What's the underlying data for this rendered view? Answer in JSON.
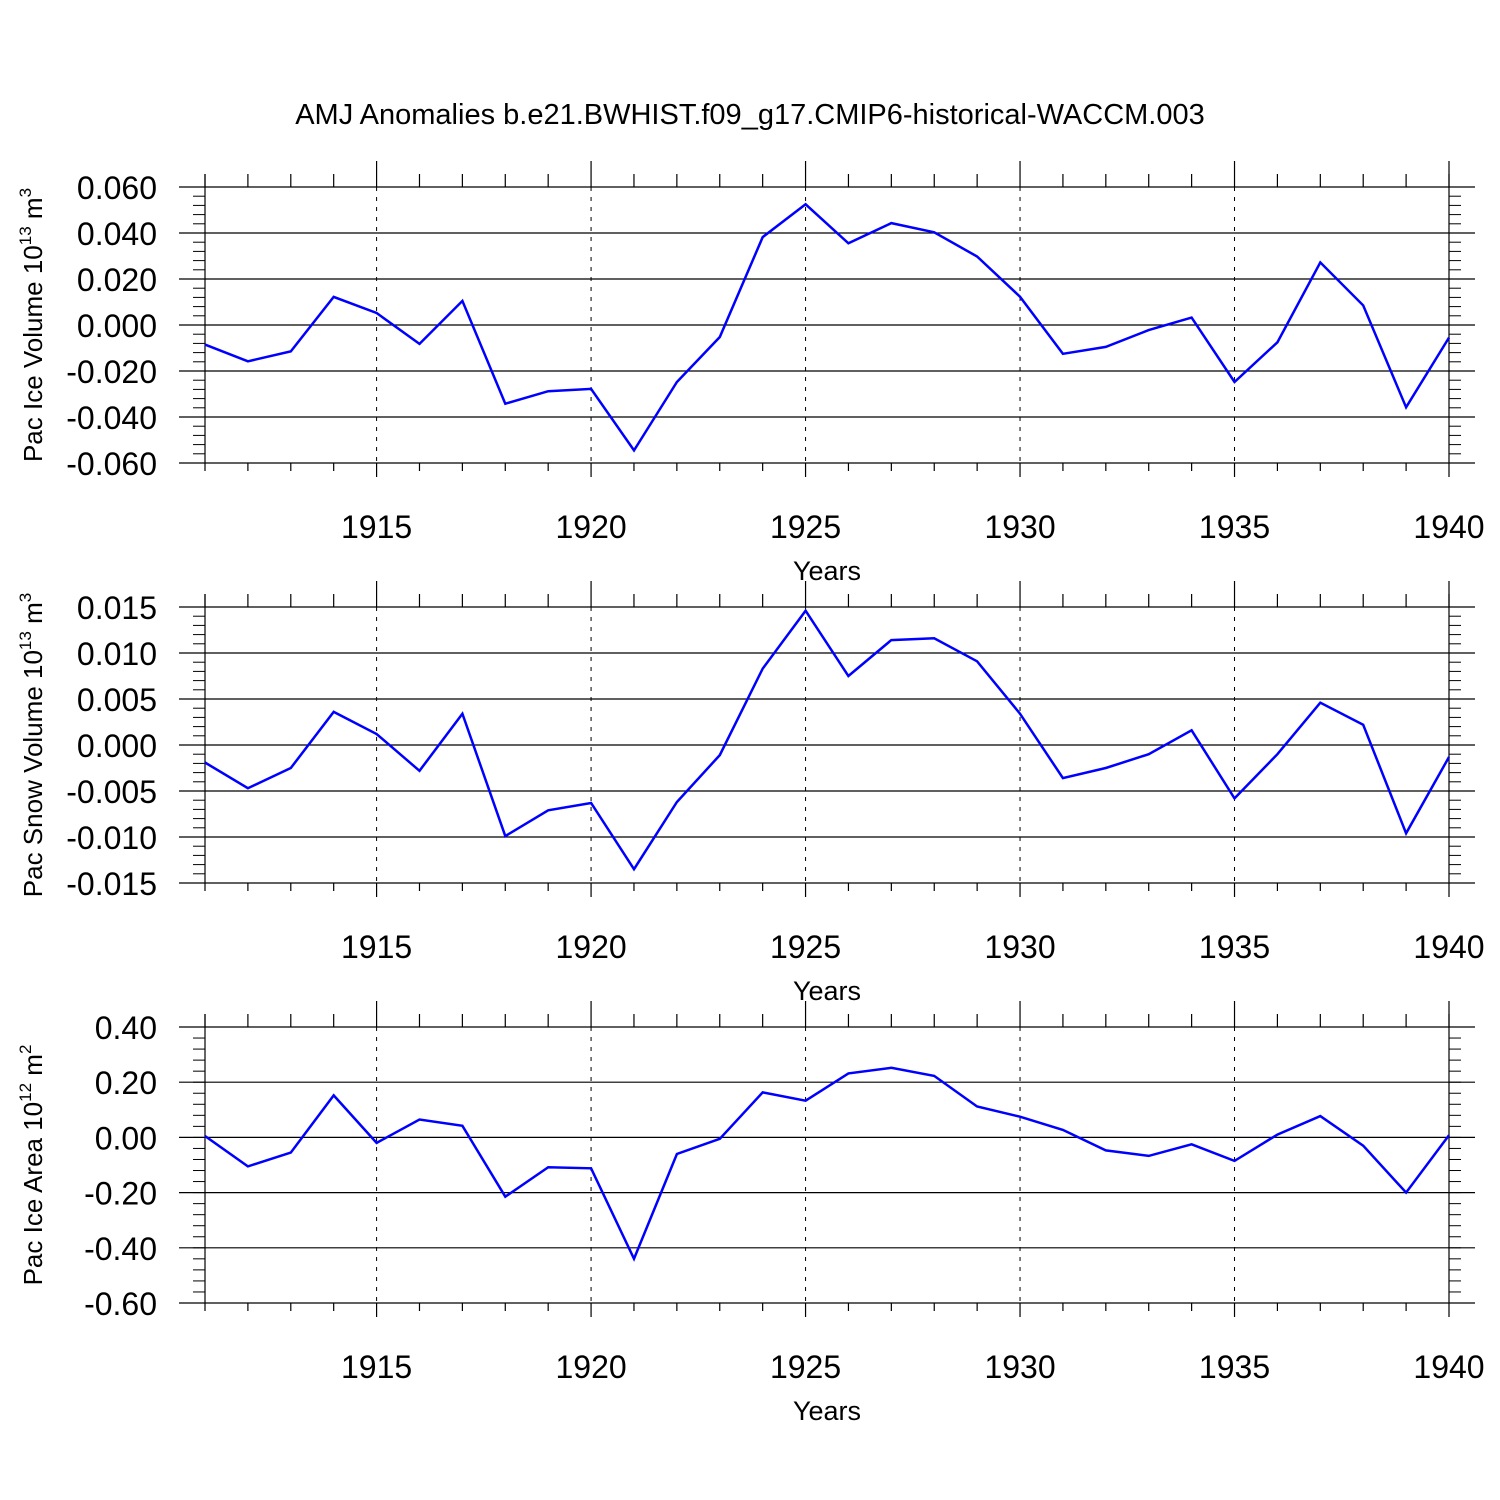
{
  "figure": {
    "title": "AMJ Anomalies b.e21.BWHIST.f09_g17.CMIP6-historical-WACCM.003",
    "line_color": "#0000ff"
  },
  "chart_data": [
    {
      "type": "line",
      "ylabel_prefix": "Pac Ice Volume 10",
      "ylabel_exp": "13",
      "ylabel_unit": " m",
      "ylabel_unit_exp": "3",
      "xlabel": "Years",
      "xlim": [
        1911,
        1940
      ],
      "ylim": [
        -0.06,
        0.06
      ],
      "yticks": [
        -0.06,
        -0.04,
        -0.02,
        0.0,
        0.02,
        0.04,
        0.06
      ],
      "ytick_labels": [
        "-0.060",
        "-0.040",
        "-0.020",
        "0.000",
        "0.020",
        "0.040",
        "0.060"
      ],
      "xticks": [
        1915,
        1920,
        1925,
        1930,
        1935,
        1940
      ],
      "xtick_labels": [
        "1915",
        "1920",
        "1925",
        "1930",
        "1935",
        "1940"
      ],
      "x": [
        1911,
        1912,
        1913,
        1914,
        1915,
        1916,
        1917,
        1918,
        1919,
        1920,
        1921,
        1922,
        1923,
        1924,
        1925,
        1926,
        1927,
        1928,
        1929,
        1930,
        1931,
        1932,
        1933,
        1934,
        1935,
        1936,
        1937,
        1938,
        1939,
        1940
      ],
      "values": [
        -0.0085,
        -0.0158,
        -0.0115,
        0.0122,
        0.0052,
        -0.0082,
        0.0105,
        -0.0342,
        -0.0288,
        -0.0278,
        -0.0545,
        -0.0248,
        -0.0052,
        0.0382,
        0.0525,
        0.0355,
        0.0443,
        0.0403,
        0.0298,
        0.0123,
        -0.0125,
        -0.0095,
        -0.0022,
        0.0032,
        -0.0248,
        -0.0075,
        0.0272,
        0.0085,
        -0.0358,
        -0.0055
      ]
    },
    {
      "type": "line",
      "ylabel_prefix": "Pac Snow Volume 10",
      "ylabel_exp": "13",
      "ylabel_unit": " m",
      "ylabel_unit_exp": "3",
      "xlabel": "Years",
      "xlim": [
        1911,
        1940
      ],
      "ylim": [
        -0.015,
        0.015
      ],
      "yticks": [
        -0.015,
        -0.01,
        -0.005,
        0.0,
        0.005,
        0.01,
        0.015
      ],
      "ytick_labels": [
        "-0.015",
        "-0.010",
        "-0.005",
        "0.000",
        "0.005",
        "0.010",
        "0.015"
      ],
      "xticks": [
        1915,
        1920,
        1925,
        1930,
        1935,
        1940
      ],
      "xtick_labels": [
        "1915",
        "1920",
        "1925",
        "1930",
        "1935",
        "1940"
      ],
      "x": [
        1911,
        1912,
        1913,
        1914,
        1915,
        1916,
        1917,
        1918,
        1919,
        1920,
        1921,
        1922,
        1923,
        1924,
        1925,
        1926,
        1927,
        1928,
        1929,
        1930,
        1931,
        1932,
        1933,
        1934,
        1935,
        1936,
        1937,
        1938,
        1939,
        1940
      ],
      "values": [
        -0.0019,
        -0.0047,
        -0.0025,
        0.0036,
        0.0012,
        -0.0028,
        0.0034,
        -0.0099,
        -0.0071,
        -0.0063,
        -0.0135,
        -0.0062,
        -0.0011,
        0.0083,
        0.0146,
        0.0075,
        0.0114,
        0.0116,
        0.0091,
        0.0034,
        -0.0036,
        -0.0025,
        -0.001,
        0.0016,
        -0.0058,
        -0.001,
        0.0046,
        0.0022,
        -0.0096,
        -0.0013
      ]
    },
    {
      "type": "line",
      "ylabel_prefix": "Pac Ice Area 10",
      "ylabel_exp": "12",
      "ylabel_unit": " m",
      "ylabel_unit_exp": "2",
      "xlabel": "Years",
      "xlim": [
        1911,
        1940
      ],
      "ylim": [
        -0.6,
        0.4
      ],
      "yticks": [
        -0.6,
        -0.4,
        -0.2,
        0.0,
        0.2,
        0.4
      ],
      "ytick_labels": [
        "-0.60",
        "-0.40",
        "-0.20",
        "0.00",
        "0.20",
        "0.40"
      ],
      "xticks": [
        1915,
        1920,
        1925,
        1930,
        1935,
        1940
      ],
      "xtick_labels": [
        "1915",
        "1920",
        "1925",
        "1930",
        "1935",
        "1940"
      ],
      "x": [
        1911,
        1912,
        1913,
        1914,
        1915,
        1916,
        1917,
        1918,
        1919,
        1920,
        1921,
        1922,
        1923,
        1924,
        1925,
        1926,
        1927,
        1928,
        1929,
        1930,
        1931,
        1932,
        1933,
        1934,
        1935,
        1936,
        1937,
        1938,
        1939,
        1940
      ],
      "values": [
        0.005,
        -0.105,
        -0.055,
        0.152,
        -0.02,
        0.065,
        0.042,
        -0.215,
        -0.108,
        -0.112,
        -0.44,
        -0.06,
        -0.005,
        0.163,
        0.133,
        0.232,
        0.252,
        0.223,
        0.112,
        0.075,
        0.027,
        -0.047,
        -0.067,
        -0.025,
        -0.085,
        0.01,
        0.077,
        -0.03,
        -0.2,
        0.008
      ]
    }
  ]
}
